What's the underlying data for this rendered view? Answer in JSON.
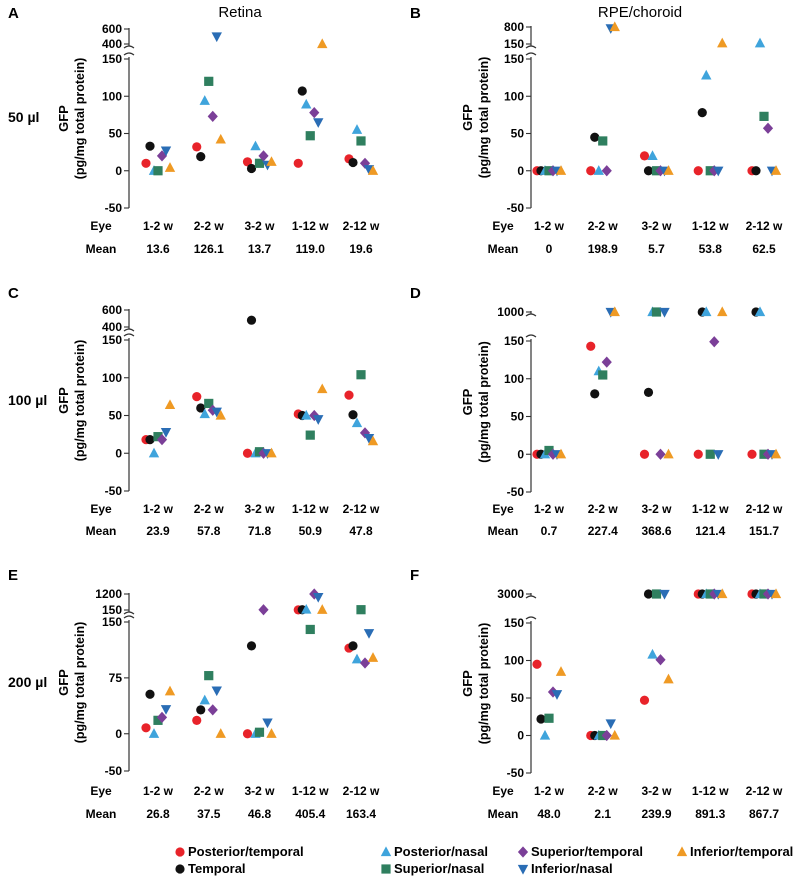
{
  "colors": {
    "posterior_temporal": "#e8232a",
    "temporal": "#111111",
    "posterior_nasal": "#3fa4dc",
    "superior_nasal": "#2f7f5f",
    "superior_temporal": "#7b3f98",
    "inferior_nasal": "#2a6db5",
    "inferior_temporal": "#ef9a24"
  },
  "column_titles": [
    "Retina",
    "RPE/choroid"
  ],
  "row_labels": [
    "50 µl",
    "100 µl",
    "200 µl"
  ],
  "ylabel_line1": "GFP",
  "ylabel_line2": "(pg/mg total protein)",
  "row_header_eye": "Eye",
  "row_header_mean": "Mean",
  "groups": [
    "1-2 w",
    "2-2 w",
    "3-2 w",
    "1-12 w",
    "2-12 w"
  ],
  "legend": [
    {
      "label": "Posterior/temporal",
      "shape": "circle",
      "color_key": "posterior_temporal"
    },
    {
      "label": "Posterior/nasal",
      "shape": "triangle-up",
      "color_key": "posterior_nasal"
    },
    {
      "label": "Superior/temporal",
      "shape": "diamond",
      "color_key": "superior_temporal"
    },
    {
      "label": "Inferior/temporal",
      "shape": "triangle-up",
      "color_key": "inferior_temporal"
    },
    {
      "label": "Temporal",
      "shape": "circle",
      "color_key": "temporal"
    },
    {
      "label": "Superior/nasal",
      "shape": "square",
      "color_key": "superior_nasal"
    },
    {
      "label": "Inferior/nasal",
      "shape": "triangle-down",
      "color_key": "inferior_nasal"
    }
  ],
  "chart_data": [
    {
      "panel": "A",
      "type": "scatter",
      "lower_ticks": [
        "-50",
        "0",
        "50",
        "100",
        "150"
      ],
      "upper_ticks": [
        "400",
        "600"
      ],
      "ylim_lower": [
        -50,
        150
      ],
      "ylim_upper": [
        400,
        600
      ],
      "means": [
        "13.6",
        "126.1",
        "13.7",
        "119.0",
        "19.6"
      ],
      "series": [
        {
          "name": "Posterior/temporal",
          "values": [
            10,
            32,
            12,
            10,
            16
          ]
        },
        {
          "name": "Temporal",
          "values": [
            33,
            19,
            3,
            107,
            11
          ]
        },
        {
          "name": "Posterior/nasal",
          "values": [
            0,
            94,
            33,
            89,
            55
          ]
        },
        {
          "name": "Superior/nasal",
          "values": [
            0,
            120,
            10,
            47,
            40
          ]
        },
        {
          "name": "Superior/temporal",
          "values": [
            20,
            73,
            20,
            78,
            10
          ]
        },
        {
          "name": "Inferior/nasal",
          "values": [
            27,
            500,
            8,
            65,
            2
          ]
        },
        {
          "name": "Inferior/temporal",
          "values": [
            4,
            42,
            12,
            400,
            0
          ]
        }
      ]
    },
    {
      "panel": "B",
      "type": "scatter",
      "lower_ticks": [
        "-50",
        "0",
        "50",
        "100",
        "150"
      ],
      "upper_ticks": [
        "150",
        "800"
      ],
      "ylim_lower": [
        -50,
        150
      ],
      "ylim_upper": [
        150,
        800
      ],
      "means": [
        "0",
        "198.9",
        "5.7",
        "53.8",
        "62.5"
      ],
      "series": [
        {
          "name": "Posterior/temporal",
          "values": [
            0,
            0,
            20,
            0,
            0
          ]
        },
        {
          "name": "Temporal",
          "values": [
            0,
            45,
            0,
            78,
            0
          ]
        },
        {
          "name": "Posterior/nasal",
          "values": [
            0,
            0,
            20,
            128,
            180
          ]
        },
        {
          "name": "Superior/nasal",
          "values": [
            0,
            40,
            0,
            0,
            73
          ]
        },
        {
          "name": "Superior/temporal",
          "values": [
            0,
            0,
            0,
            0,
            57
          ]
        },
        {
          "name": "Inferior/nasal",
          "values": [
            0,
            750,
            0,
            0,
            0
          ]
        },
        {
          "name": "Inferior/temporal",
          "values": [
            0,
            800,
            0,
            180,
            0
          ]
        }
      ]
    },
    {
      "panel": "C",
      "type": "scatter",
      "lower_ticks": [
        "-50",
        "0",
        "50",
        "100",
        "150"
      ],
      "upper_ticks": [
        "400",
        "600"
      ],
      "ylim_lower": [
        -50,
        150
      ],
      "ylim_upper": [
        400,
        600
      ],
      "means": [
        "23.9",
        "57.8",
        "71.8",
        "50.9",
        "47.8"
      ],
      "series": [
        {
          "name": "Posterior/temporal",
          "values": [
            18,
            75,
            0,
            52,
            77
          ]
        },
        {
          "name": "Temporal",
          "values": [
            18,
            60,
            480,
            50,
            51
          ]
        },
        {
          "name": "Posterior/nasal",
          "values": [
            0,
            52,
            0,
            50,
            40
          ]
        },
        {
          "name": "Superior/nasal",
          "values": [
            22,
            66,
            2,
            24,
            104
          ]
        },
        {
          "name": "Superior/temporal",
          "values": [
            18,
            57,
            0,
            50,
            27
          ]
        },
        {
          "name": "Inferior/nasal",
          "values": [
            28,
            55,
            0,
            45,
            20
          ]
        },
        {
          "name": "Inferior/temporal",
          "values": [
            64,
            50,
            0,
            85,
            16
          ]
        }
      ]
    },
    {
      "panel": "D",
      "type": "scatter",
      "lower_ticks": [
        "-50",
        "0",
        "50",
        "100",
        "150"
      ],
      "upper_ticks": [
        "1000"
      ],
      "ylim_lower": [
        -50,
        150
      ],
      "ylim_upper": [
        150,
        1000
      ],
      "means": [
        "0.7",
        "227.4",
        "368.6",
        "121.4",
        "151.7"
      ],
      "series": [
        {
          "name": "Posterior/temporal",
          "values": [
            0,
            143,
            0,
            0,
            0
          ]
        },
        {
          "name": "Temporal",
          "values": [
            0,
            80,
            82,
            300,
            300
          ]
        },
        {
          "name": "Posterior/nasal",
          "values": [
            0,
            110,
            500,
            300,
            700
          ]
        },
        {
          "name": "Superior/nasal",
          "values": [
            5,
            105,
            700,
            0,
            0
          ]
        },
        {
          "name": "Superior/temporal",
          "values": [
            0,
            122,
            0,
            149,
            0
          ]
        },
        {
          "name": "Inferior/nasal",
          "values": [
            0,
            300,
            900,
            0,
            0
          ]
        },
        {
          "name": "Inferior/temporal",
          "values": [
            0,
            500,
            0,
            300,
            0
          ]
        }
      ]
    },
    {
      "panel": "E",
      "type": "scatter",
      "lower_ticks": [
        "-50",
        "0",
        "75",
        "150"
      ],
      "upper_ticks": [
        "150",
        "1200"
      ],
      "ylim_lower": [
        -50,
        150
      ],
      "ylim_upper": [
        150,
        1200
      ],
      "means": [
        "26.8",
        "37.5",
        "46.8",
        "405.4",
        "163.4"
      ],
      "series": [
        {
          "name": "Posterior/temporal",
          "values": [
            8,
            18,
            0,
            160,
            115
          ]
        },
        {
          "name": "Temporal",
          "values": [
            53,
            32,
            118,
            165,
            118
          ]
        },
        {
          "name": "Posterior/nasal",
          "values": [
            0,
            45,
            0,
            180,
            100
          ]
        },
        {
          "name": "Superior/nasal",
          "values": [
            18,
            78,
            2,
            140,
            170
          ]
        },
        {
          "name": "Superior/temporal",
          "values": [
            22,
            32,
            165,
            1200,
            95
          ]
        },
        {
          "name": "Inferior/nasal",
          "values": [
            33,
            58,
            15,
            1000,
            135
          ]
        },
        {
          "name": "Inferior/temporal",
          "values": [
            57,
            0,
            0,
            165,
            102
          ]
        }
      ]
    },
    {
      "panel": "F",
      "type": "scatter",
      "lower_ticks": [
        "-50",
        "0",
        "50",
        "100",
        "150"
      ],
      "upper_ticks": [
        "3000"
      ],
      "ylim_lower": [
        -50,
        150
      ],
      "ylim_upper": [
        150,
        3000
      ],
      "means": [
        "48.0",
        "2.1",
        "239.9",
        "891.3",
        "867.7"
      ],
      "series": [
        {
          "name": "Posterior/temporal",
          "values": [
            95,
            0,
            47,
            300,
            500
          ]
        },
        {
          "name": "Temporal",
          "values": [
            22,
            0,
            200,
            300,
            600
          ]
        },
        {
          "name": "Posterior/nasal",
          "values": [
            0,
            0,
            108,
            600,
            600
          ]
        },
        {
          "name": "Superior/nasal",
          "values": [
            23,
            0,
            180,
            700,
            700
          ]
        },
        {
          "name": "Superior/temporal",
          "values": [
            58,
            0,
            101,
            3000,
            300
          ]
        },
        {
          "name": "Inferior/nasal",
          "values": [
            55,
            16,
            500,
            1500,
            300
          ]
        },
        {
          "name": "Inferior/temporal",
          "values": [
            85,
            0,
            75,
            300,
            300
          ]
        }
      ]
    }
  ]
}
